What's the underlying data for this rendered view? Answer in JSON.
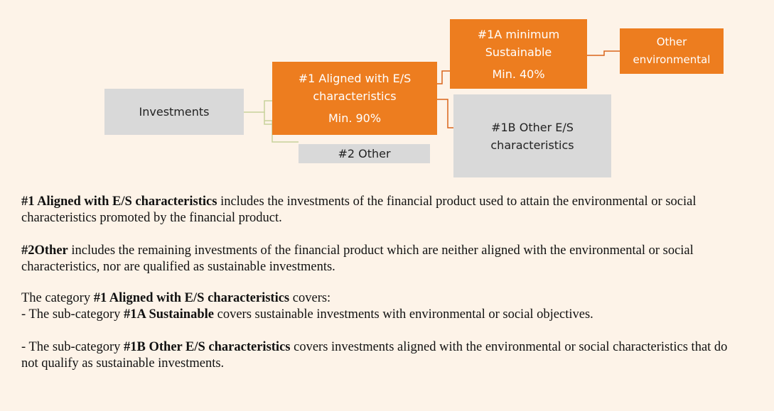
{
  "nodes": [
    {
      "lines": [
        "Investments"
      ]
    },
    {
      "lines": [
        "#1  Aligned with E/S",
        "characteristics",
        "Min. 90%"
      ]
    },
    {
      "lines": [
        "#1A minimum",
        "Sustainable",
        "Min. 40%"
      ]
    },
    {
      "lines": [
        "Other",
        "environmental"
      ]
    },
    {
      "lines": [
        "#1B Other E/S",
        "characteristics"
      ]
    },
    {
      "lines": [
        "#2 Other"
      ]
    }
  ],
  "paragraphs": [
    [
      {
        "text": "#1 Aligned with E/S characteristics",
        "bold": true
      },
      {
        "text": " includes the investments of the financial product used to attain the environmental or social characteristics promoted by the financial product.",
        "bold": false
      }
    ],
    [
      {
        "text": "#2Other",
        "bold": true
      },
      {
        "text": " includes the remaining investments of the financial product which are neither aligned with the environmental or social characteristics, nor are qualified as sustainable investments.",
        "bold": false
      }
    ],
    [
      {
        "text": "The category ",
        "bold": false
      },
      {
        "text": "#1 Aligned with E/S characteristics",
        "bold": true
      },
      {
        "text": " covers:",
        "bold": false
      }
    ],
    [
      {
        "text": "- The sub-category ",
        "bold": false
      },
      {
        "text": "#1A Sustainable",
        "bold": true
      },
      {
        "text": " covers sustainable investments with environmental or social objectives.",
        "bold": false
      }
    ],
    [
      {
        "text": "- The sub-category ",
        "bold": false
      },
      {
        "text": "#1B Other E/S characteristics",
        "bold": true
      },
      {
        "text": " covers investments aligned with the environmental or social characteristics that do not qualify as sustainable investments.",
        "bold": false
      }
    ]
  ]
}
